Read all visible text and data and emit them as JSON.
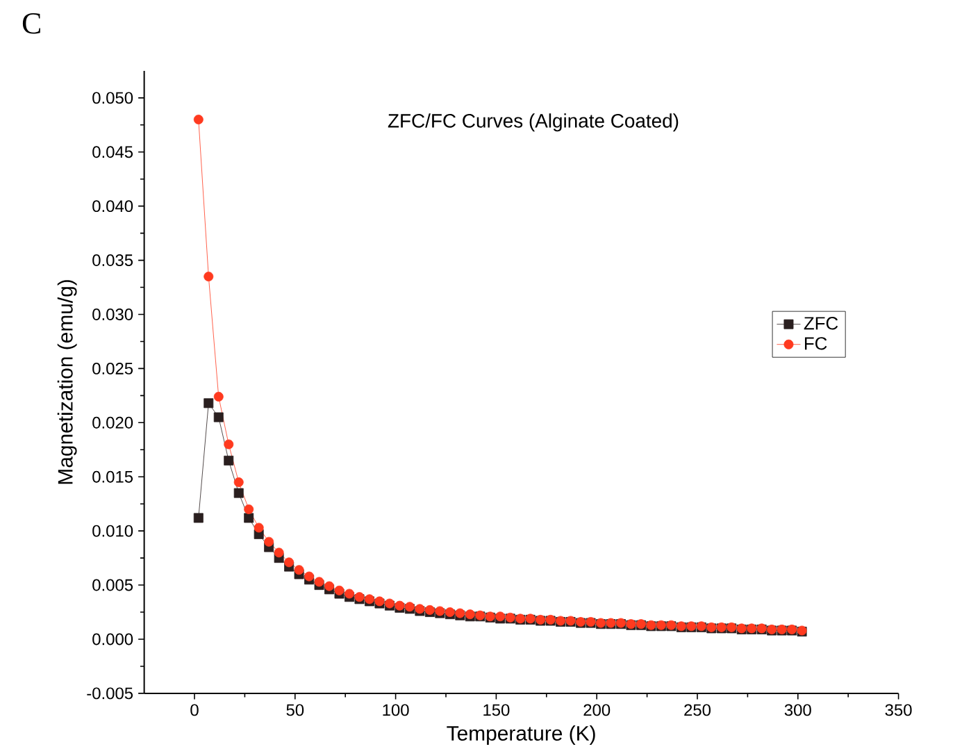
{
  "chart_data": {
    "type": "line",
    "title": "ZFC/FC Curves (Alginate Coated)",
    "xlabel": "Temperature (K)",
    "ylabel": "Magnetization (emu/g)",
    "annotations": [
      "C"
    ],
    "xlim": [
      -25,
      350
    ],
    "xticks": [
      0,
      50,
      100,
      150,
      200,
      250,
      300,
      350
    ],
    "ylim": [
      -0.005,
      0.0525
    ],
    "yticks": [
      {
        "value": -0.005,
        "label": "-0.005"
      },
      {
        "value": 0,
        "label": "0.000"
      },
      {
        "value": 0.005,
        "label": "0.005"
      },
      {
        "value": 0.01,
        "label": "0.010"
      },
      {
        "value": 0.015,
        "label": "0.015"
      },
      {
        "value": 0.02,
        "label": "0.020"
      },
      {
        "value": 0.025,
        "label": "0.025"
      },
      {
        "value": 0.03,
        "label": "0.030"
      },
      {
        "value": 0.035,
        "label": "0.035"
      },
      {
        "value": 0.04,
        "label": "0.040"
      },
      {
        "value": 0.045,
        "label": "0.045"
      },
      {
        "value": 0.05,
        "label": "0.050"
      }
    ],
    "x": [
      2,
      7,
      12,
      17,
      22,
      27,
      32,
      37,
      42,
      47,
      52,
      57,
      62,
      67,
      72,
      77,
      82,
      87,
      92,
      97,
      102,
      107,
      112,
      117,
      122,
      127,
      132,
      137,
      142,
      147,
      152,
      157,
      162,
      167,
      172,
      177,
      182,
      187,
      192,
      197,
      202,
      207,
      212,
      217,
      222,
      227,
      232,
      237,
      242,
      247,
      252,
      257,
      262,
      267,
      272,
      277,
      282,
      287,
      292,
      297,
      302
    ],
    "series": [
      {
        "name": "ZFC",
        "color": "#2a1f1f",
        "marker": "square",
        "values": [
          0.0112,
          0.0218,
          0.0205,
          0.0165,
          0.0135,
          0.0112,
          0.0097,
          0.0085,
          0.0075,
          0.0067,
          0.006,
          0.0055,
          0.005,
          0.0046,
          0.0042,
          0.0039,
          0.0037,
          0.0035,
          0.0033,
          0.0031,
          0.0029,
          0.0028,
          0.0026,
          0.0025,
          0.0024,
          0.0023,
          0.0022,
          0.0021,
          0.0021,
          0.002,
          0.0019,
          0.0019,
          0.0018,
          0.0018,
          0.0017,
          0.0017,
          0.0016,
          0.0016,
          0.0015,
          0.0015,
          0.0014,
          0.0014,
          0.0014,
          0.0013,
          0.0013,
          0.0012,
          0.0012,
          0.0012,
          0.0011,
          0.0011,
          0.0011,
          0.001,
          0.001,
          0.001,
          0.0009,
          0.0009,
          0.0009,
          0.0008,
          0.0008,
          0.0008,
          0.0007
        ]
      },
      {
        "name": "FC",
        "color": "#ff3a1f",
        "marker": "circle",
        "values": [
          0.048,
          0.0335,
          0.0224,
          0.018,
          0.0145,
          0.012,
          0.0103,
          0.009,
          0.008,
          0.0071,
          0.0064,
          0.0058,
          0.0053,
          0.0049,
          0.0045,
          0.0042,
          0.0039,
          0.0037,
          0.0035,
          0.0033,
          0.0031,
          0.003,
          0.0028,
          0.0027,
          0.0026,
          0.0025,
          0.0024,
          0.0023,
          0.0022,
          0.0021,
          0.0021,
          0.002,
          0.0019,
          0.0019,
          0.0018,
          0.0018,
          0.0017,
          0.0017,
          0.0016,
          0.0016,
          0.0015,
          0.0015,
          0.0015,
          0.0014,
          0.0014,
          0.0013,
          0.0013,
          0.0013,
          0.0012,
          0.0012,
          0.0012,
          0.0011,
          0.0011,
          0.0011,
          0.001,
          0.001,
          0.001,
          0.0009,
          0.0009,
          0.0009,
          0.0008
        ]
      }
    ],
    "legend": "right",
    "line_style": "solid",
    "grid": false
  }
}
